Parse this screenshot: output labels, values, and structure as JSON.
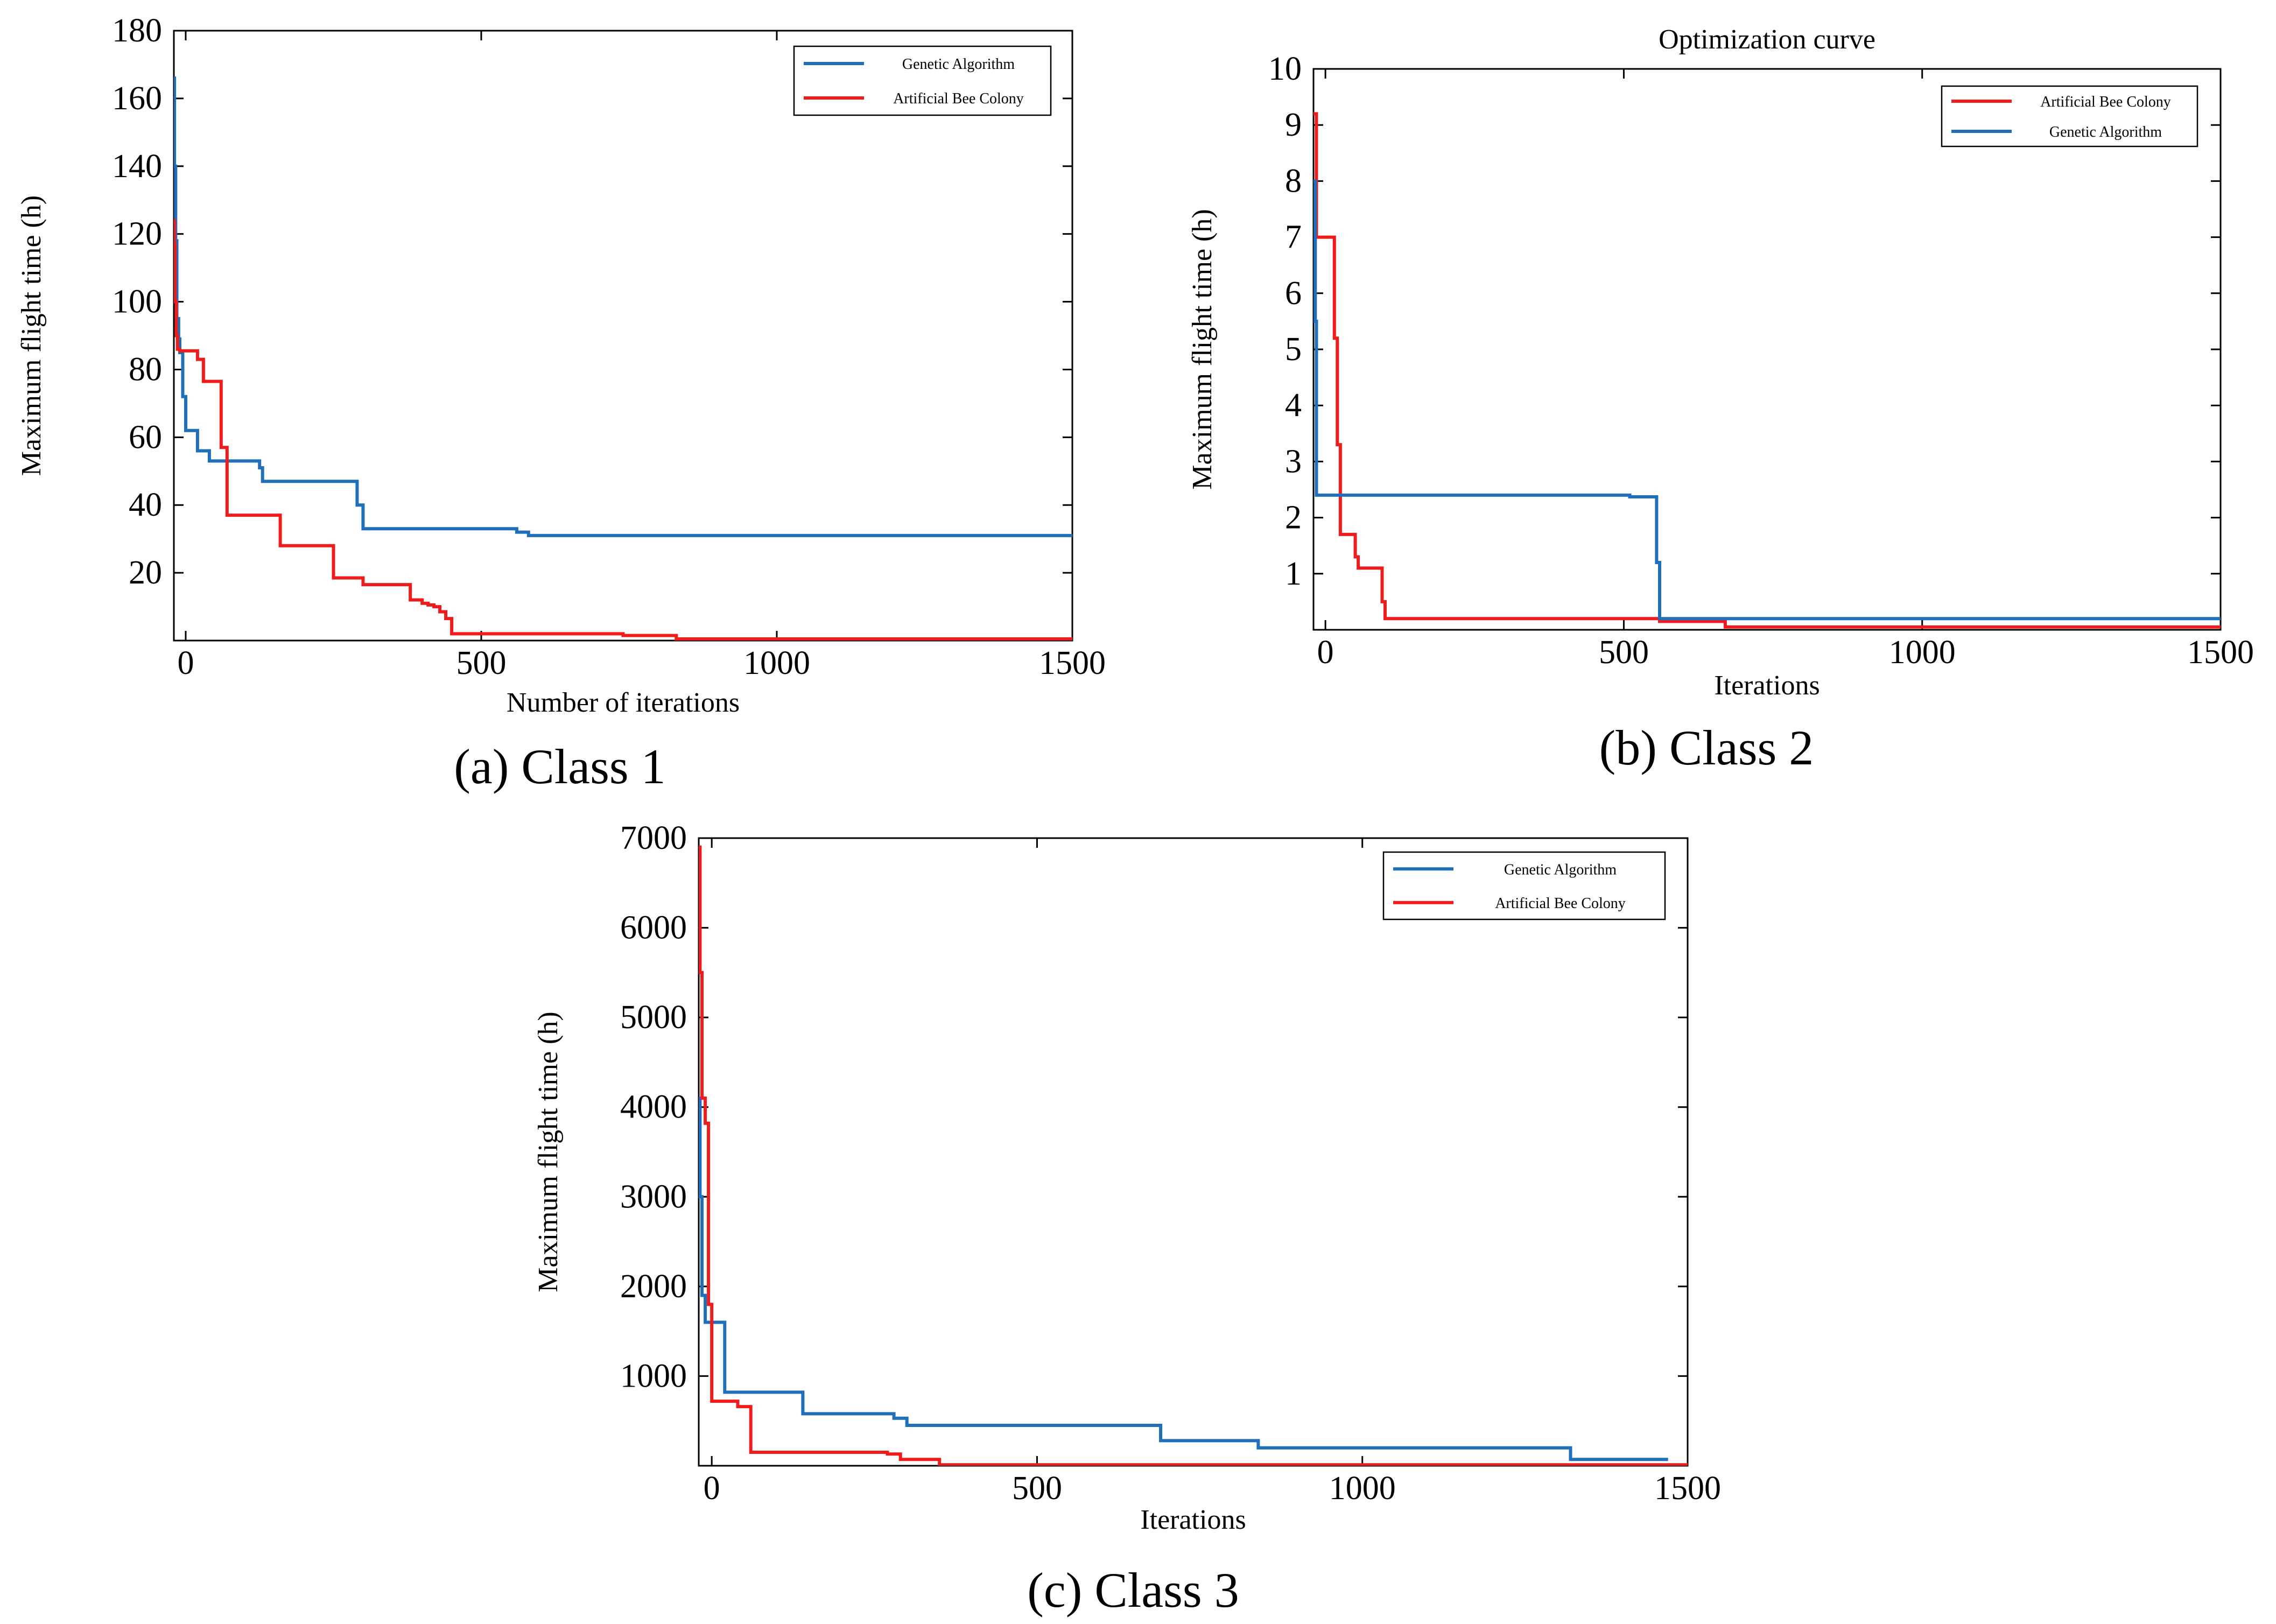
{
  "colors": {
    "genetic": "#1f6fba",
    "abc": "#ee1c1c",
    "axis": "#000000"
  },
  "chart_data": [
    {
      "type": "line",
      "caption": "(a) Class 1",
      "title": "",
      "xlabel": "Number of iterations",
      "ylabel": "Maximum flight time (h)",
      "xlim": [
        -20,
        1500
      ],
      "ylim": [
        0,
        180
      ],
      "xticks": [
        0,
        500,
        1000,
        1500
      ],
      "xtick_labels": [
        "0",
        "500",
        "1000",
        "1500"
      ],
      "yticks": [
        20,
        40,
        60,
        80,
        100,
        120,
        140,
        160,
        180
      ],
      "ytick_labels": [
        "20",
        "40",
        "60",
        "80",
        "100",
        "120",
        "140",
        "160",
        "180"
      ],
      "legend_position": "top-right",
      "series": [
        {
          "name": "Genetic Algorithm",
          "color_key": "genetic",
          "x": [
            -20,
            -19,
            -17,
            -15,
            -12,
            -10,
            -5,
            0,
            20,
            40,
            60,
            120,
            125,
            130,
            280,
            290,
            300,
            550,
            560,
            580,
            1500
          ],
          "y": [
            166,
            140,
            118,
            95,
            89,
            85,
            72,
            62,
            56,
            53,
            53,
            53,
            51,
            47,
            47,
            40,
            33,
            33,
            32,
            31,
            31
          ]
        },
        {
          "name": "Artificial Bee Colony",
          "color_key": "abc",
          "x": [
            -20,
            -19,
            -18,
            -16,
            -14,
            -10,
            20,
            30,
            60,
            70,
            80,
            160,
            170,
            250,
            260,
            300,
            310,
            380,
            400,
            410,
            420,
            430,
            440,
            450,
            460,
            730,
            740,
            820,
            830,
            1500
          ],
          "y": [
            124,
            117,
            100,
            90,
            86,
            85.5,
            83,
            76.5,
            57,
            37,
            37,
            28,
            28,
            18.5,
            18.5,
            16.5,
            16.5,
            12,
            11,
            10.5,
            10,
            8.5,
            6.5,
            2,
            2,
            2,
            1.5,
            1.5,
            0.5,
            0.5
          ]
        }
      ]
    },
    {
      "type": "line",
      "caption": "(b) Class 2",
      "title": "Optimization curve",
      "xlabel": "Iterations",
      "ylabel": "Maximum flight time (h)",
      "xlim": [
        -20,
        1500
      ],
      "ylim": [
        0,
        10
      ],
      "xticks": [
        0,
        500,
        1000,
        1500
      ],
      "xtick_labels": [
        "0",
        "500",
        "1000",
        "1500"
      ],
      "yticks": [
        1,
        2,
        3,
        4,
        5,
        6,
        7,
        8,
        9,
        10
      ],
      "ytick_labels": [
        "1",
        "2",
        "3",
        "4",
        "5",
        "6",
        "7",
        "8",
        "9",
        "10"
      ],
      "legend_position": "top-right",
      "series": [
        {
          "name": "Artificial Bee Colony",
          "color_key": "abc",
          "x": [
            -20,
            -15,
            -10,
            0,
            10,
            15,
            20,
            25,
            40,
            50,
            55,
            60,
            90,
            95,
            100,
            550,
            560,
            660,
            670,
            1500
          ],
          "y": [
            9.2,
            7.0,
            7.0,
            7.0,
            7.0,
            5.2,
            3.3,
            1.7,
            1.7,
            1.3,
            1.1,
            1.1,
            1.1,
            0.5,
            0.2,
            0.2,
            0.15,
            0.15,
            0.05,
            0.05
          ]
        },
        {
          "name": "Genetic Algorithm",
          "color_key": "genetic",
          "x": [
            -20,
            -17,
            -15,
            -10,
            0,
            500,
            510,
            550,
            555,
            560,
            1500
          ],
          "y": [
            8.0,
            5.5,
            2.4,
            2.4,
            2.4,
            2.4,
            2.37,
            2.37,
            1.2,
            0.2,
            0.2
          ]
        }
      ]
    },
    {
      "type": "line",
      "caption": "(c) Class 3",
      "title": "",
      "xlabel": "Iterations",
      "ylabel": "Maximum flight time (h)",
      "xlim": [
        -20,
        1500
      ],
      "ylim": [
        0,
        7000
      ],
      "xticks": [
        0,
        500,
        1000,
        1500
      ],
      "xtick_labels": [
        "0",
        "500",
        "1000",
        "1500"
      ],
      "yticks": [
        1000,
        2000,
        3000,
        4000,
        5000,
        6000,
        7000
      ],
      "ytick_labels": [
        "1000",
        "2000",
        "3000",
        "4000",
        "5000",
        "6000",
        "7000"
      ],
      "legend_position": "top-right",
      "series": [
        {
          "name": "Genetic Algorithm",
          "color_key": "genetic",
          "x": [
            -20,
            -18,
            -15,
            -10,
            0,
            10,
            20,
            130,
            140,
            260,
            280,
            290,
            300,
            680,
            690,
            830,
            840,
            1310,
            1320,
            1470
          ],
          "y": [
            4100,
            3000,
            1900,
            1600,
            1600,
            1600,
            820,
            820,
            580,
            580,
            530,
            530,
            450,
            450,
            280,
            280,
            200,
            200,
            70,
            70
          ]
        },
        {
          "name": "Artificial Bee Colony",
          "color_key": "abc",
          "x": [
            -20,
            -18,
            -15,
            -10,
            -5,
            0,
            20,
            30,
            40,
            50,
            60,
            260,
            270,
            280,
            290,
            340,
            350,
            1500
          ],
          "y": [
            6900,
            5500,
            4100,
            3820,
            1800,
            720,
            720,
            720,
            660,
            660,
            150,
            150,
            130,
            130,
            70,
            70,
            10,
            10
          ]
        }
      ]
    }
  ]
}
